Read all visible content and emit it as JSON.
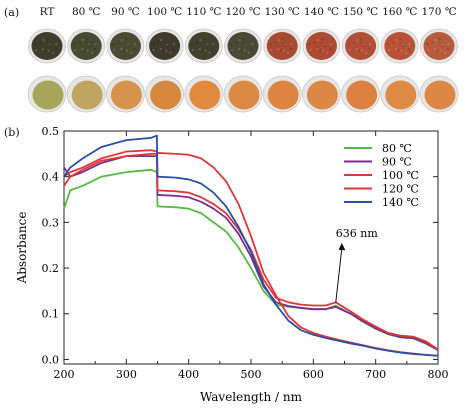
{
  "panel_a": {
    "label": "(a)",
    "temperatures": [
      "RT",
      "80 ℃",
      "90 ℃",
      "100 ℃",
      "110 ℃",
      "120 ℃",
      "130 ℃",
      "140 ℃",
      "150 ℃",
      "160 ℃",
      "170 ℃"
    ],
    "top_row_colors": [
      "#3d3f2c",
      "#454a31",
      "#4b4b31",
      "#3f3a2c",
      "#42402f",
      "#4a4938",
      "#a84a30",
      "#ac4a34",
      "#b04f35",
      "#b85337",
      "#b85a3c"
    ],
    "bottom_row_colors": [
      "#a9a45c",
      "#bfa55f",
      "#d6934c",
      "#d8873f",
      "#df8a3e",
      "#dc8a43",
      "#dd8540",
      "#dc8845",
      "#db8240",
      "#dd8a45",
      "#dc8844"
    ],
    "plate_color": "#e6e6e6"
  },
  "panel_b": {
    "label": "(b)"
  },
  "chart_data": {
    "type": "line",
    "xlabel": "Wavelength / nm",
    "ylabel": "Absorbance",
    "xlim": [
      200,
      800
    ],
    "ylim": [
      -0.01,
      0.5
    ],
    "xticks": [
      "200",
      "300",
      "400",
      "500",
      "600",
      "700",
      "800"
    ],
    "yticks": [
      "0.0",
      "0.1",
      "0.2",
      "0.3",
      "0.4",
      "0.5"
    ],
    "grid": false,
    "legend": "top-right",
    "annotation": {
      "text": "636 nm",
      "x": 636,
      "y": 0.125
    },
    "series": [
      {
        "name": "80 ℃",
        "color": "#55bb44",
        "x": [
          200,
          210,
          230,
          260,
          300,
          340,
          349,
          350,
          380,
          400,
          420,
          440,
          460,
          480,
          500,
          520,
          540,
          560,
          580,
          600,
          620,
          636,
          660,
          680,
          700,
          720,
          740,
          760,
          780,
          800
        ],
        "y": [
          0.33,
          0.37,
          0.38,
          0.4,
          0.41,
          0.415,
          0.41,
          0.335,
          0.333,
          0.33,
          0.32,
          0.3,
          0.28,
          0.245,
          0.2,
          0.15,
          0.12,
          0.115,
          0.112,
          0.11,
          0.11,
          0.118,
          0.1,
          0.082,
          0.067,
          0.055,
          0.048,
          0.046,
          0.035,
          0.02
        ]
      },
      {
        "name": "90 ℃",
        "color": "#7b2d92",
        "x": [
          200,
          210,
          230,
          260,
          300,
          340,
          349,
          350,
          380,
          400,
          420,
          440,
          460,
          480,
          500,
          520,
          540,
          560,
          580,
          600,
          620,
          636,
          660,
          680,
          700,
          720,
          740,
          760,
          780,
          800
        ],
        "y": [
          0.42,
          0.4,
          0.41,
          0.43,
          0.445,
          0.445,
          0.445,
          0.36,
          0.358,
          0.355,
          0.345,
          0.33,
          0.31,
          0.275,
          0.225,
          0.16,
          0.125,
          0.117,
          0.113,
          0.11,
          0.11,
          0.115,
          0.1,
          0.083,
          0.068,
          0.056,
          0.049,
          0.047,
          0.036,
          0.021
        ]
      },
      {
        "name": "100 ℃",
        "color": "#e0353b",
        "x": [
          200,
          210,
          230,
          260,
          300,
          340,
          349,
          350,
          380,
          400,
          420,
          440,
          460,
          480,
          500,
          510,
          520,
          540,
          560,
          580,
          600,
          620,
          640,
          660,
          680,
          700,
          720,
          740,
          760,
          780,
          800
        ],
        "y": [
          0.4,
          0.41,
          0.42,
          0.44,
          0.455,
          0.458,
          0.455,
          0.452,
          0.45,
          0.448,
          0.44,
          0.42,
          0.39,
          0.34,
          0.27,
          0.23,
          0.19,
          0.14,
          0.095,
          0.07,
          0.058,
          0.05,
          0.043,
          0.037,
          0.031,
          0.025,
          0.02,
          0.016,
          0.013,
          0.01,
          0.008
        ]
      },
      {
        "name": "120 ℃",
        "color": "#e0353b",
        "x": [
          200,
          210,
          230,
          260,
          300,
          340,
          349,
          350,
          380,
          400,
          420,
          440,
          460,
          480,
          500,
          520,
          540,
          560,
          580,
          600,
          620,
          636,
          660,
          680,
          700,
          720,
          740,
          760,
          780,
          800
        ],
        "y": [
          0.38,
          0.4,
          0.415,
          0.435,
          0.445,
          0.45,
          0.45,
          0.37,
          0.368,
          0.365,
          0.355,
          0.34,
          0.32,
          0.285,
          0.24,
          0.175,
          0.135,
          0.125,
          0.12,
          0.118,
          0.118,
          0.125,
          0.105,
          0.087,
          0.072,
          0.058,
          0.052,
          0.05,
          0.04,
          0.022
        ]
      },
      {
        "name": "140 ℃",
        "color": "#2b4fa2",
        "x": [
          200,
          210,
          230,
          260,
          300,
          340,
          349,
          350,
          380,
          400,
          420,
          440,
          460,
          480,
          500,
          510,
          520,
          540,
          560,
          580,
          600,
          620,
          640,
          660,
          680,
          700,
          720,
          740,
          760,
          780,
          800
        ],
        "y": [
          0.4,
          0.42,
          0.44,
          0.465,
          0.48,
          0.485,
          0.49,
          0.4,
          0.398,
          0.394,
          0.385,
          0.365,
          0.335,
          0.29,
          0.235,
          0.2,
          0.165,
          0.12,
          0.085,
          0.064,
          0.054,
          0.047,
          0.041,
          0.035,
          0.03,
          0.024,
          0.019,
          0.015,
          0.012,
          0.01,
          0.008
        ]
      }
    ]
  }
}
